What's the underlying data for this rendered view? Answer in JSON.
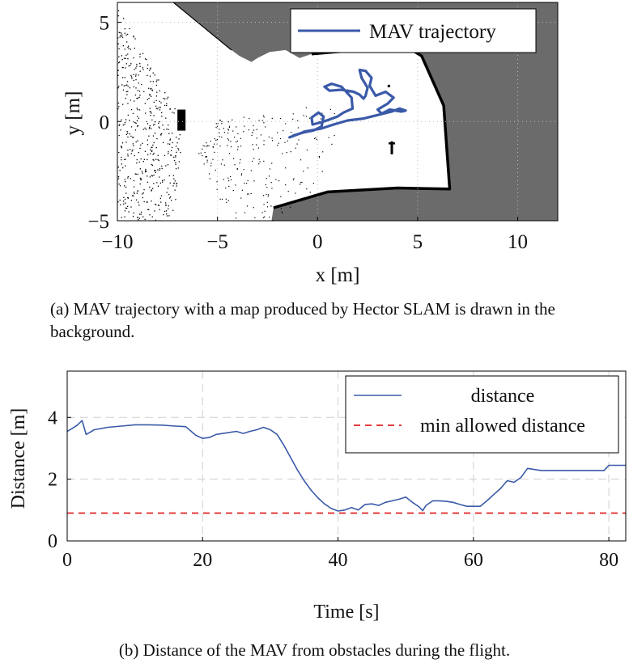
{
  "figure_a": {
    "caption": "(a) MAV trajectory with a map produced by Hector SLAM is drawn in the background."
  },
  "figure_b": {
    "caption": "(b) Distance of the MAV from obstacles during the flight."
  },
  "chart_data": [
    {
      "type": "line",
      "xlabel": "x [m]",
      "ylabel": "y [m]",
      "xlim": [
        -10,
        12
      ],
      "ylim": [
        -5,
        6
      ],
      "xticks": [
        -10,
        -5,
        0,
        5,
        10
      ],
      "yticks": [
        -5,
        0,
        5
      ],
      "grid": true,
      "legend_position": "top-right",
      "background_map": true,
      "colors": {
        "occupied": "#000000",
        "free": "#ffffff",
        "unknown": "#6b6b6b",
        "grid": "#bdbdbd"
      },
      "series": [
        {
          "name": "MAV trajectory",
          "color": "#3a5aa8",
          "x": [
            -1.4,
            -0.6,
            0.2,
            0.8,
            1.5,
            2.3,
            3.1,
            3.7,
            4.1,
            4.4,
            4.2,
            3.6,
            3.2,
            3.0,
            3.5,
            3.8,
            3.4,
            2.9,
            2.6,
            2.7,
            2.4,
            2.1,
            2.2,
            2.5,
            2.4,
            2.3,
            2.1,
            1.8,
            1.2,
            0.6,
            0.35,
            0.7,
            1.2,
            1.7,
            1.75,
            1.3,
            1.0,
            0.6,
            0.15,
            -0.25,
            -0.3,
            0.05,
            0.3,
            0.2,
            -0.2,
            -0.7,
            -1.2
          ],
          "y": [
            -0.8,
            -0.5,
            -0.35,
            -0.15,
            0.05,
            0.15,
            0.35,
            0.5,
            0.65,
            0.55,
            0.5,
            0.6,
            0.4,
            0.6,
            0.9,
            1.2,
            1.5,
            1.3,
            1.8,
            2.2,
            2.55,
            2.6,
            2.2,
            1.7,
            1.3,
            1.15,
            1.35,
            1.5,
            1.6,
            1.55,
            1.75,
            1.9,
            1.75,
            1.2,
            0.65,
            0.45,
            0.25,
            0.1,
            -0.05,
            -0.15,
            0.2,
            0.45,
            0.25,
            -0.25,
            -0.45,
            -0.55,
            -0.7
          ]
        }
      ]
    },
    {
      "type": "line",
      "xlabel": "Time [s]",
      "ylabel": "Distance [m]",
      "xlim": [
        0,
        82.5
      ],
      "ylim": [
        0,
        5.5
      ],
      "xticks": [
        0,
        20,
        40,
        60,
        80
      ],
      "yticks": [
        0,
        2,
        4
      ],
      "grid": true,
      "legend_position": "top-right",
      "series": [
        {
          "name": "distance",
          "color": "#3a5aa8",
          "style": "solid",
          "x": [
            0,
            0.8,
            1.5,
            2.2,
            2.8,
            3.2,
            4,
            6,
            8,
            10,
            12,
            14,
            16,
            17.5,
            19,
            20,
            21,
            22,
            23.5,
            25,
            26,
            27,
            28,
            29,
            30,
            31,
            32,
            33,
            34,
            35,
            36,
            37,
            38,
            39,
            40,
            41,
            42,
            43,
            44,
            45,
            46,
            47,
            48,
            49,
            50,
            51,
            52,
            52.5,
            53,
            54,
            55,
            56,
            57,
            58,
            59,
            60,
            61,
            62,
            63,
            64,
            65,
            66,
            67,
            68,
            70,
            72,
            75,
            78,
            79.3,
            80,
            82.5
          ],
          "y": [
            3.55,
            3.65,
            3.75,
            3.9,
            3.45,
            3.5,
            3.6,
            3.68,
            3.72,
            3.76,
            3.76,
            3.75,
            3.72,
            3.7,
            3.42,
            3.32,
            3.35,
            3.45,
            3.5,
            3.55,
            3.48,
            3.55,
            3.6,
            3.68,
            3.6,
            3.45,
            3.1,
            2.7,
            2.3,
            1.95,
            1.65,
            1.4,
            1.2,
            1.05,
            0.97,
            1.0,
            1.08,
            1.0,
            1.18,
            1.2,
            1.15,
            1.25,
            1.3,
            1.35,
            1.42,
            1.25,
            1.1,
            0.98,
            1.15,
            1.3,
            1.3,
            1.28,
            1.25,
            1.18,
            1.12,
            1.12,
            1.12,
            1.3,
            1.5,
            1.7,
            1.95,
            1.9,
            2.05,
            2.35,
            2.28,
            2.28,
            2.28,
            2.28,
            2.28,
            2.45,
            2.45
          ]
        },
        {
          "name": "min allowed distance",
          "color": "#e02020",
          "style": "dashed",
          "x": [
            0,
            82.5
          ],
          "y": [
            0.9,
            0.9
          ]
        }
      ]
    }
  ]
}
